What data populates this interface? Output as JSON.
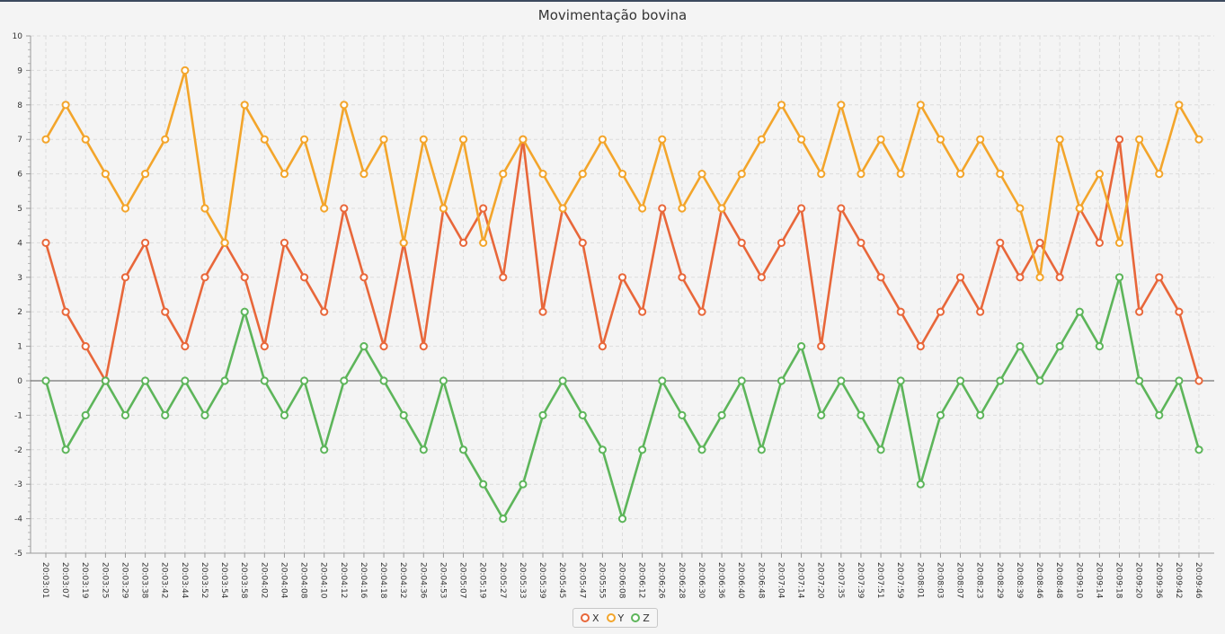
{
  "chart_data": {
    "type": "line",
    "title": "Movimentação bovina",
    "xlabel": "",
    "ylabel": "",
    "ylim": [
      -5,
      10
    ],
    "yticks": [
      -5,
      -4,
      -3,
      -2,
      -1,
      0,
      1,
      2,
      3,
      4,
      5,
      6,
      7,
      8,
      9,
      10
    ],
    "grid": true,
    "legend_position": "bottom-center",
    "categories": [
      "20:03:01",
      "20:03:07",
      "20:03:19",
      "20:03:25",
      "20:03:29",
      "20:03:38",
      "20:03:42",
      "20:03:44",
      "20:03:52",
      "20:03:54",
      "20:03:58",
      "20:04:02",
      "20:04:04",
      "20:04:08",
      "20:04:10",
      "20:04:12",
      "20:04:16",
      "20:04:18",
      "20:04:32",
      "20:04:36",
      "20:04:53",
      "20:05:07",
      "20:05:19",
      "20:05:27",
      "20:05:33",
      "20:05:39",
      "20:05:45",
      "20:05:47",
      "20:05:55",
      "20:06:08",
      "20:06:12",
      "20:06:26",
      "20:06:28",
      "20:06:30",
      "20:06:36",
      "20:06:40",
      "20:06:48",
      "20:07:04",
      "20:07:14",
      "20:07:20",
      "20:07:35",
      "20:07:39",
      "20:07:51",
      "20:07:59",
      "20:08:01",
      "20:08:03",
      "20:08:07",
      "20:08:23",
      "20:08:29",
      "20:08:39",
      "20:08:46",
      "20:08:48",
      "20:09:10",
      "20:09:14",
      "20:09:18",
      "20:09:20",
      "20:09:36",
      "20:09:42",
      "20:09:46"
    ],
    "series": [
      {
        "name": "X",
        "color": "#e8673a",
        "values": [
          4,
          2,
          1,
          0,
          3,
          4,
          2,
          1,
          3,
          4,
          3,
          1,
          4,
          3,
          2,
          5,
          3,
          1,
          4,
          1,
          5,
          4,
          5,
          3,
          7,
          2,
          5,
          4,
          1,
          3,
          2,
          5,
          3,
          2,
          5,
          4,
          3,
          4,
          5,
          1,
          5,
          4,
          3,
          2,
          1,
          2,
          3,
          2,
          4,
          3,
          4,
          3,
          5,
          4,
          7,
          2,
          3,
          2,
          0
        ]
      },
      {
        "name": "Y",
        "color": "#f3a52b",
        "values": [
          7,
          8,
          7,
          6,
          5,
          6,
          7,
          9,
          5,
          4,
          8,
          7,
          6,
          7,
          5,
          8,
          6,
          7,
          4,
          7,
          5,
          7,
          4,
          6,
          7,
          6,
          5,
          6,
          7,
          6,
          5,
          7,
          5,
          6,
          5,
          6,
          7,
          8,
          7,
          6,
          8,
          6,
          7,
          6,
          8,
          7,
          6,
          7,
          6,
          5,
          3,
          7,
          5,
          6,
          4,
          7,
          6,
          8,
          7
        ]
      },
      {
        "name": "Z",
        "color": "#5db55a",
        "values": [
          0,
          -2,
          -1,
          0,
          -1,
          0,
          -1,
          0,
          -1,
          0,
          2,
          0,
          -1,
          0,
          -2,
          0,
          1,
          0,
          -1,
          -2,
          0,
          -2,
          -3,
          -4,
          -3,
          -1,
          0,
          -1,
          -2,
          -4,
          -2,
          0,
          -1,
          -2,
          -1,
          0,
          -2,
          0,
          1,
          -1,
          0,
          -1,
          -2,
          0,
          -3,
          -1,
          0,
          -1,
          0,
          1,
          0,
          1,
          2,
          1,
          3,
          0,
          -1,
          0,
          -2
        ]
      }
    ]
  }
}
